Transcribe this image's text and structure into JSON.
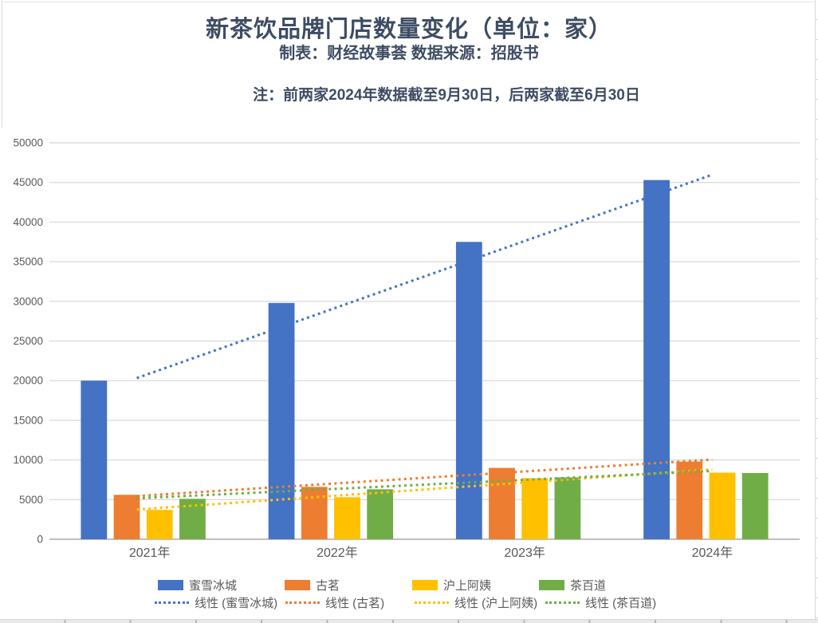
{
  "header": {
    "title": "新茶饮品牌门店数量变化（单位：家）",
    "subtitle": "制表：财经故事荟 数据来源：招股书",
    "note": "注：前两家2024年数据截至9月30日，后两家截至6月30日"
  },
  "chart_data": {
    "type": "bar",
    "title": "新茶饮品牌门店数量变化（单位：家）",
    "categories": [
      "2021年",
      "2022年",
      "2023年",
      "2024年"
    ],
    "series": [
      {
        "name": "蜜雪冰城",
        "color": "#4472C4",
        "values": [
          20000,
          29800,
          37500,
          45300
        ]
      },
      {
        "name": "古茗",
        "color": "#ED7D31",
        "values": [
          5600,
          6600,
          9000,
          9800
        ]
      },
      {
        "name": "沪上阿姨",
        "color": "#FFC000",
        "values": [
          3700,
          5300,
          7700,
          8400
        ]
      },
      {
        "name": "茶百道",
        "color": "#70AD47",
        "values": [
          5100,
          6300,
          7800,
          8350
        ]
      }
    ],
    "trendlines": [
      {
        "label": "线性 (蜜雪冰城)",
        "color": "#4472C4",
        "style": "dotted"
      },
      {
        "label": "线性 (古茗)",
        "color": "#ED7D31",
        "style": "dotted"
      },
      {
        "label": "线性 (沪上阿姨)",
        "color": "#FFC000",
        "style": "dotted"
      },
      {
        "label": "线性 (茶百道)",
        "color": "#70AD47",
        "style": "dotted"
      }
    ],
    "xlabel": "",
    "ylabel": "",
    "ylim": [
      0,
      50000
    ],
    "ytick_step": 5000,
    "grid": true,
    "gridline_color": "#dcdcdc",
    "axis_line_color": "#bfbfbf",
    "tick_label_color": "#595959",
    "legend_position": "bottom"
  }
}
